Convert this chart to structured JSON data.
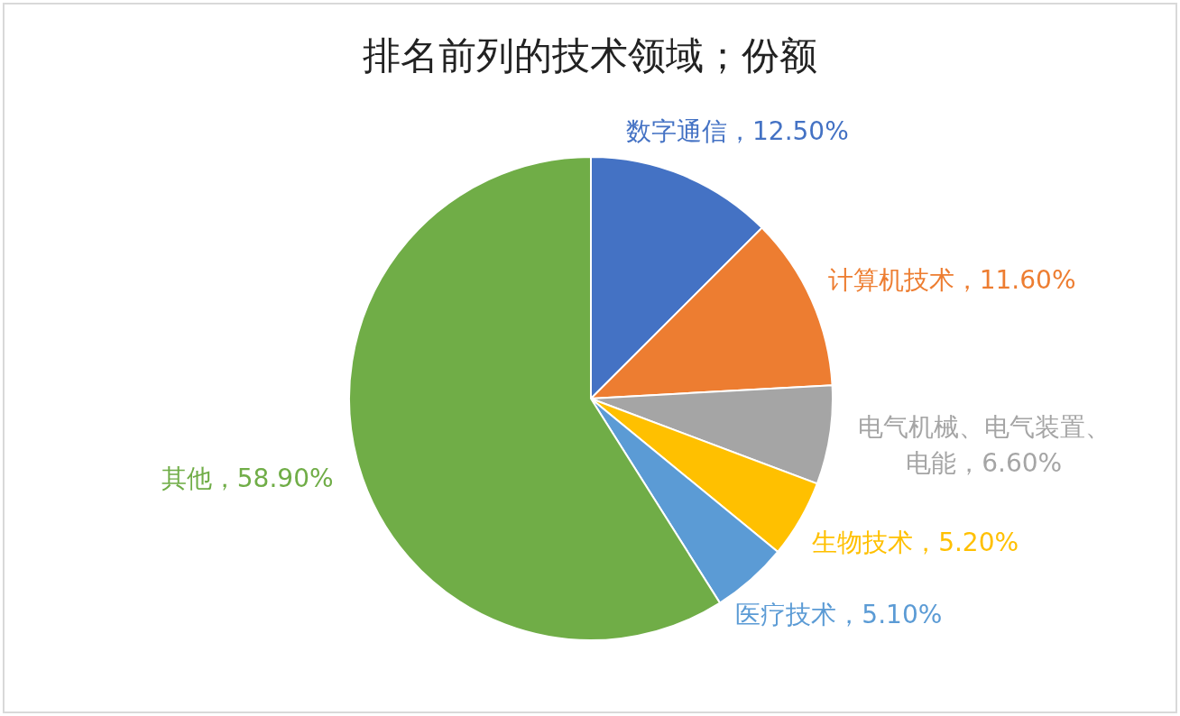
{
  "chart_data": {
    "type": "pie",
    "title": "排名前列的技术领域；份额",
    "categories": [
      "数字通信",
      "计算机技术",
      "电气机械、电气装置、电能",
      "生物技术",
      "医疗技术",
      "其他"
    ],
    "values": [
      12.5,
      11.6,
      6.6,
      5.2,
      5.1,
      58.9
    ],
    "value_labels": [
      "12.50%",
      "11.60%",
      "6.60%",
      "5.20%",
      "5.10%",
      "58.90%"
    ],
    "colors": [
      "#4472c4",
      "#ed7d31",
      "#a5a5a5",
      "#ffc000",
      "#5b9bd5",
      "#70ad47"
    ]
  }
}
